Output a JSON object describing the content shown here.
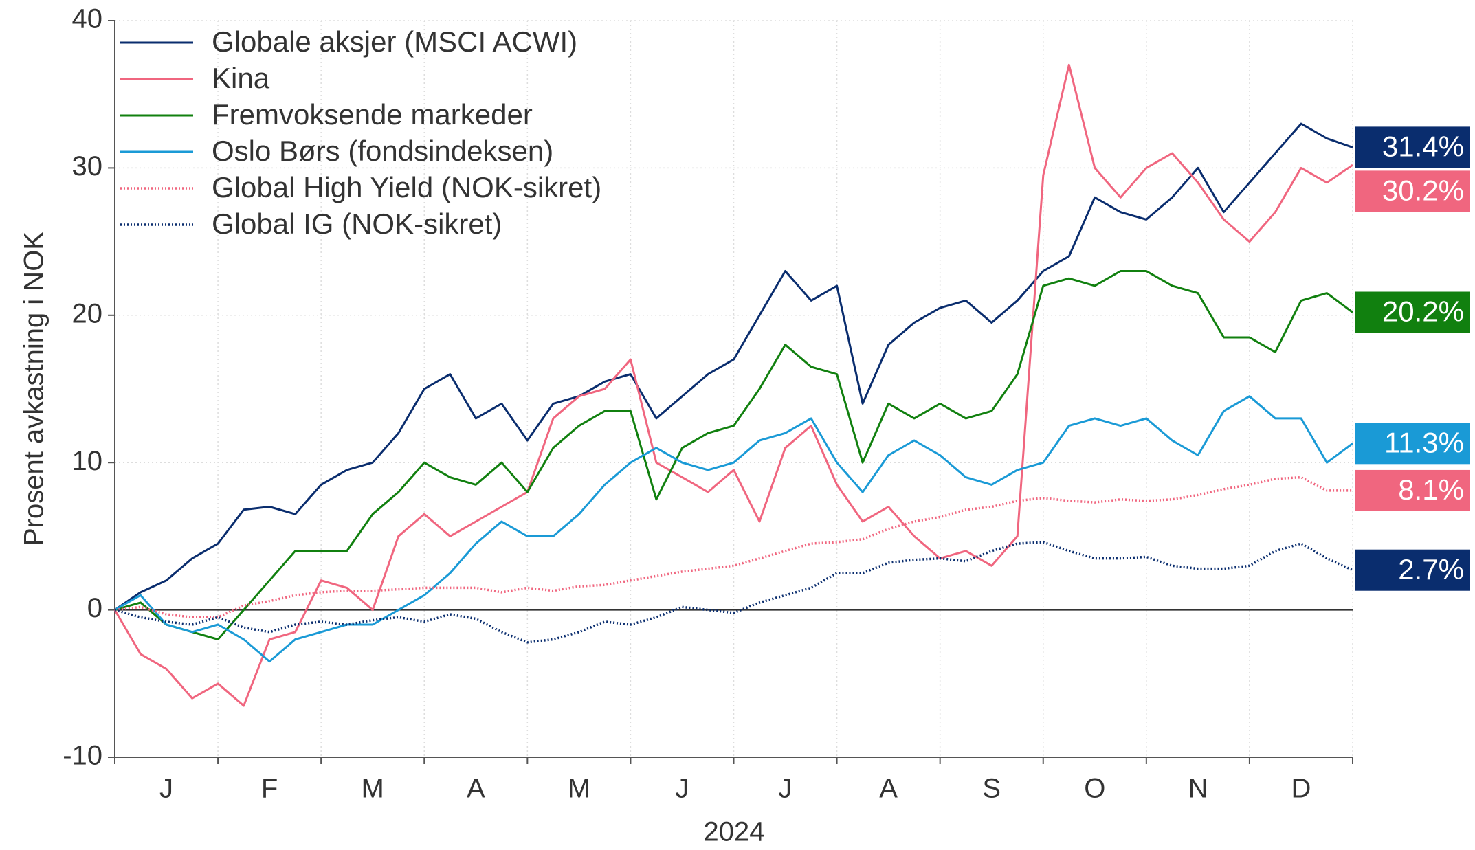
{
  "chart_data": {
    "type": "line",
    "ylabel": "Prosent avkastning i NOK",
    "xlabel": "2024",
    "categories": [
      null,
      null,
      "J",
      null,
      null,
      null,
      "F",
      null,
      null,
      null,
      "M",
      null,
      null,
      null,
      "A",
      null,
      null,
      null,
      "M",
      null,
      null,
      null,
      "J",
      null,
      null,
      null,
      "J",
      null,
      null,
      null,
      "A",
      null,
      null,
      null,
      "S",
      null,
      null,
      null,
      "O",
      null,
      null,
      null,
      "N",
      null,
      null,
      null,
      "D",
      null,
      null
    ],
    "ylim": [
      -10,
      40
    ],
    "yticks": [
      -10,
      0,
      10,
      20,
      30,
      40
    ],
    "grid": true,
    "legend": "top-left",
    "series": [
      {
        "name": "Globale aksjer (MSCI ACWI)",
        "color": "#0a2d6e",
        "dashed": false,
        "values": [
          0,
          1.2,
          2,
          3.5,
          4.5,
          6.8,
          7,
          6.5,
          8.5,
          9.5,
          10,
          12,
          15,
          16,
          13,
          14,
          11.5,
          14,
          14.5,
          15.5,
          16,
          13,
          14.5,
          16,
          17,
          20,
          23,
          21,
          22,
          14,
          18,
          19.5,
          20.5,
          21,
          19.5,
          21,
          23,
          24,
          28,
          27,
          26.5,
          28,
          30,
          27,
          29,
          31,
          33,
          32,
          31.4
        ],
        "value_labels": [
          null,
          null,
          null,
          null,
          null,
          null,
          null,
          null,
          null,
          null,
          null,
          null,
          null,
          null,
          null,
          null,
          null,
          null,
          null,
          null,
          null,
          null,
          null,
          null,
          null,
          null,
          null,
          null,
          null,
          null,
          null,
          null,
          null,
          null,
          null,
          null,
          null,
          null,
          null,
          null,
          null,
          null,
          null,
          null,
          null,
          null,
          null,
          null,
          "31.4%"
        ]
      },
      {
        "name": "Kina",
        "color": "#f0667f",
        "dashed": false,
        "values": [
          0,
          -3,
          -4,
          -6,
          -5,
          -6.5,
          -2,
          -1.5,
          2,
          1.5,
          0,
          5,
          6.5,
          5,
          6,
          7,
          8,
          13,
          14.5,
          15,
          17,
          10,
          9,
          8,
          9.5,
          6,
          11,
          12.5,
          8.5,
          6,
          7,
          5,
          3.5,
          4,
          3,
          5,
          29.5,
          37,
          30,
          28,
          30,
          31,
          29,
          26.5,
          25,
          27,
          30,
          29,
          30.2
        ],
        "value_labels": [
          null,
          null,
          null,
          null,
          null,
          null,
          null,
          null,
          null,
          null,
          null,
          null,
          null,
          null,
          null,
          null,
          null,
          null,
          null,
          null,
          null,
          null,
          null,
          null,
          null,
          null,
          null,
          null,
          null,
          null,
          null,
          null,
          null,
          null,
          null,
          null,
          null,
          null,
          null,
          null,
          null,
          null,
          null,
          null,
          null,
          null,
          null,
          null,
          "30.2%"
        ]
      },
      {
        "name": "Fremvoksende markeder",
        "color": "#11800f",
        "dashed": false,
        "values": [
          0,
          0.5,
          -1,
          -1.5,
          -2,
          0,
          2,
          4,
          4,
          4,
          6.5,
          8,
          10,
          9,
          8.5,
          10,
          8,
          11,
          12.5,
          13.5,
          13.5,
          7.5,
          11,
          12,
          12.5,
          15,
          18,
          16.5,
          16,
          10,
          14,
          13,
          14,
          13,
          13.5,
          16,
          22,
          22.5,
          22,
          23,
          23,
          22,
          21.5,
          18.5,
          18.5,
          17.5,
          21,
          21.5,
          20.2
        ],
        "value_labels": [
          null,
          null,
          null,
          null,
          null,
          null,
          null,
          null,
          null,
          null,
          null,
          null,
          null,
          null,
          null,
          null,
          null,
          null,
          null,
          null,
          null,
          null,
          null,
          null,
          null,
          null,
          null,
          null,
          null,
          null,
          null,
          null,
          null,
          null,
          null,
          null,
          null,
          null,
          null,
          null,
          null,
          null,
          null,
          null,
          null,
          null,
          null,
          null,
          "20.2%"
        ]
      },
      {
        "name": "Oslo Børs (fondsindeksen)",
        "color": "#1a9ad6",
        "dashed": false,
        "values": [
          0,
          1,
          -1,
          -1.5,
          -1,
          -2,
          -3.5,
          -2,
          -1.5,
          -1,
          -1,
          0,
          1,
          2.5,
          4.5,
          6,
          5,
          5,
          6.5,
          8.5,
          10,
          11,
          10,
          9.5,
          10,
          11.5,
          12,
          13,
          10,
          8,
          10.5,
          11.5,
          10.5,
          9,
          8.5,
          9.5,
          10,
          12.5,
          13,
          12.5,
          13,
          11.5,
          10.5,
          13.5,
          14.5,
          13,
          13,
          10,
          11.3
        ],
        "value_labels": [
          null,
          null,
          null,
          null,
          null,
          null,
          null,
          null,
          null,
          null,
          null,
          null,
          null,
          null,
          null,
          null,
          null,
          null,
          null,
          null,
          null,
          null,
          null,
          null,
          null,
          null,
          null,
          null,
          null,
          null,
          null,
          null,
          null,
          null,
          null,
          null,
          null,
          null,
          null,
          null,
          null,
          null,
          null,
          null,
          null,
          null,
          null,
          null,
          "11.3%"
        ]
      },
      {
        "name": "Global High Yield (NOK-sikret)",
        "color": "#f0667f",
        "dashed": true,
        "values": [
          0,
          0.2,
          -0.3,
          -0.5,
          -0.5,
          0.3,
          0.6,
          1,
          1.2,
          1.3,
          1.3,
          1.4,
          1.5,
          1.5,
          1.5,
          1.2,
          1.5,
          1.3,
          1.6,
          1.7,
          2,
          2.3,
          2.6,
          2.8,
          3,
          3.5,
          4,
          4.5,
          4.6,
          4.8,
          5.5,
          6,
          6.3,
          6.8,
          7,
          7.4,
          7.6,
          7.4,
          7.3,
          7.5,
          7.4,
          7.5,
          7.8,
          8.2,
          8.5,
          8.9,
          9,
          8.1,
          8.1
        ],
        "value_labels": [
          null,
          null,
          null,
          null,
          null,
          null,
          null,
          null,
          null,
          null,
          null,
          null,
          null,
          null,
          null,
          null,
          null,
          null,
          null,
          null,
          null,
          null,
          null,
          null,
          null,
          null,
          null,
          null,
          null,
          null,
          null,
          null,
          null,
          null,
          null,
          null,
          null,
          null,
          null,
          null,
          null,
          null,
          null,
          null,
          null,
          null,
          null,
          null,
          "8.1%"
        ]
      },
      {
        "name": "Global IG (NOK-sikret)",
        "color": "#0a2d6e",
        "dashed": true,
        "values": [
          0,
          -0.5,
          -0.8,
          -1,
          -0.5,
          -1.2,
          -1.5,
          -1,
          -0.8,
          -1,
          -0.7,
          -0.5,
          -0.8,
          -0.3,
          -0.6,
          -1.5,
          -2.2,
          -2,
          -1.5,
          -0.8,
          -1,
          -0.5,
          0.2,
          0,
          -0.2,
          0.5,
          1,
          1.5,
          2.5,
          2.5,
          3.2,
          3.4,
          3.5,
          3.3,
          4,
          4.5,
          4.6,
          4,
          3.5,
          3.5,
          3.6,
          3,
          2.8,
          2.8,
          3,
          4,
          4.5,
          3.5,
          2.7
        ],
        "value_labels": [
          null,
          null,
          null,
          null,
          null,
          null,
          null,
          null,
          null,
          null,
          null,
          null,
          null,
          null,
          null,
          null,
          null,
          null,
          null,
          null,
          null,
          null,
          null,
          null,
          null,
          null,
          null,
          null,
          null,
          null,
          null,
          null,
          null,
          null,
          null,
          null,
          null,
          null,
          null,
          null,
          null,
          null,
          null,
          null,
          null,
          null,
          null,
          null,
          "2.7%"
        ]
      }
    ]
  }
}
